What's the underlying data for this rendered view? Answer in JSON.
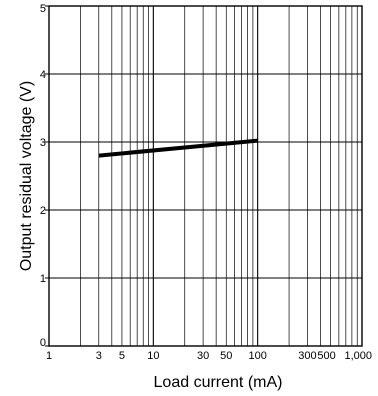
{
  "chart_data": {
    "type": "line",
    "xlabel": "Load current (mA)",
    "ylabel": "Output residual voltage (V)",
    "x_scale": "log",
    "xlim": [
      1,
      1000
    ],
    "ylim": [
      0,
      5
    ],
    "x_tick_labels": [
      "1",
      "3",
      "5",
      "10",
      "30",
      "50",
      "100",
      "300",
      "500",
      "1,000"
    ],
    "x_tick_values": [
      1,
      3,
      5,
      10,
      30,
      50,
      100,
      300,
      500,
      1000
    ],
    "y_tick_labels": [
      "0",
      "1",
      "2",
      "3",
      "4",
      "5"
    ],
    "y_tick_values": [
      0,
      1,
      2,
      3,
      4,
      5
    ],
    "grid": true,
    "series": [
      {
        "x": [
          3,
          100
        ],
        "y": [
          2.8,
          3.02
        ]
      }
    ],
    "colors": {
      "line": "#000000",
      "grid": "#000000",
      "background": "#ffffff"
    }
  }
}
